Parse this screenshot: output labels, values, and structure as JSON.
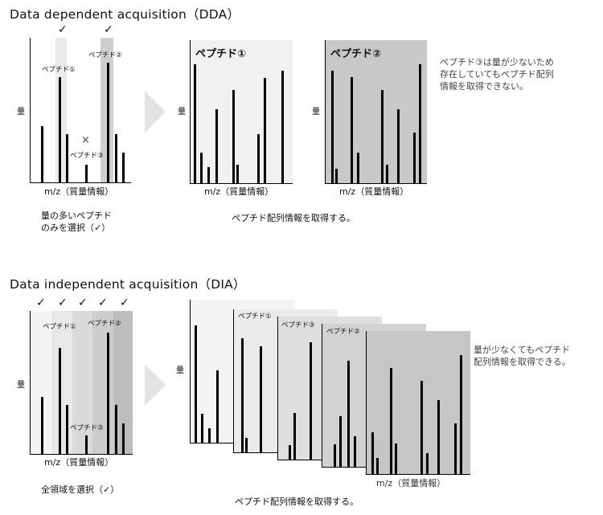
{
  "dda": {
    "title": "Data dependent acquisition（DDA）",
    "y_label": "量",
    "x_label": "m/z（質量情報）",
    "check": "✓",
    "cross": "×",
    "peptide1": "ペプチド①",
    "peptide2": "ペプチド②",
    "peptide3": "ペプチド③",
    "panel1_title": "ペプチド①",
    "panel2_title": "ペプチド②",
    "caption_left_line1": "量の多いペプチド",
    "caption_left_line2": "のみを選択（✓）",
    "caption_right": "ペプチド配列情報を取得する。",
    "note_line1": "ペプチド③は量が少ないため",
    "note_line2": "存在していてもペプチド配列",
    "note_line3": "情報を取得できない。"
  },
  "dia": {
    "title": "Data independent acquisition（DIA）",
    "y_label": "量",
    "x_label": "m/z（質量情報）",
    "check": "✓",
    "peptide1": "ペプチド①",
    "peptide2": "ペプチド②",
    "peptide3": "ペプチド③",
    "caption_left": "全領域を選択（✓）",
    "caption_right": "ペプチド配列情報を取得する。",
    "note_line1": "量が少なくてもペプチド",
    "note_line2": "配列情報を取得できる。"
  }
}
